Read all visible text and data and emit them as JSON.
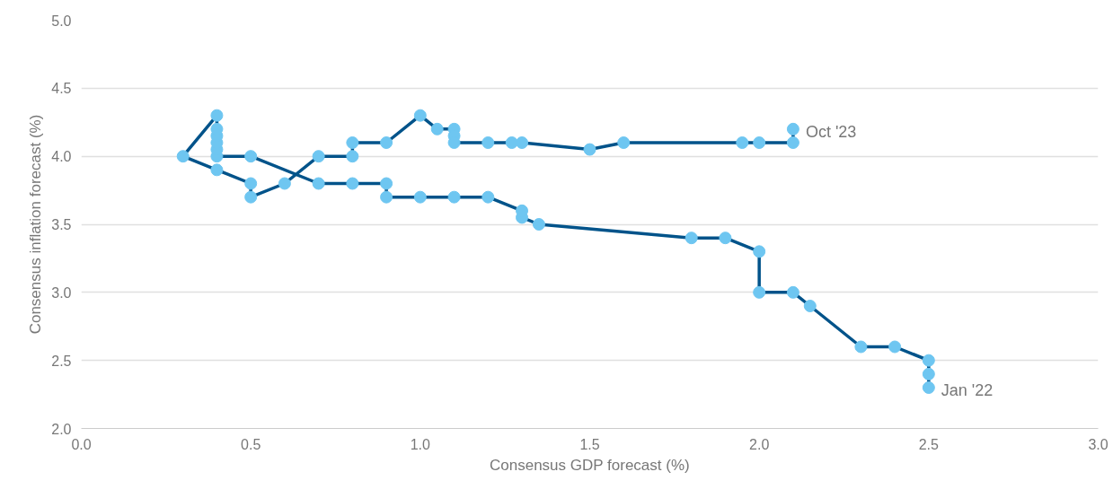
{
  "chart_data": {
    "type": "line",
    "xlabel": "Consensus GDP forecast (%)",
    "ylabel": "Consensus inflation forecast (%)",
    "xlim": [
      0,
      3
    ],
    "xticks": [
      {
        "value": 0,
        "label": "0.0"
      },
      0.5,
      {
        "value": 1,
        "label": "1.0"
      },
      1.5,
      {
        "value": 2,
        "label": "2.0"
      },
      2.5,
      {
        "value": 3,
        "label": "3.0"
      }
    ],
    "ylim": [
      2,
      5
    ],
    "yticks": [
      {
        "value": 2,
        "label": "2.0"
      },
      2.5,
      {
        "value": 3,
        "label": "3.0"
      },
      3.5,
      {
        "value": 4,
        "label": "4.0"
      },
      4.5,
      {
        "value": 5,
        "label": "5.0"
      }
    ],
    "grid": "y",
    "marker": "circle",
    "line_style": "solid",
    "series": [
      {
        "color": "#00538a",
        "colors": [
          "#6ec6f1",
          "#6ec6f1",
          "#6ec6f1",
          "#6ec6f1",
          "#6ec6f1",
          "#6ec6f1",
          "#6ec6f1",
          "#6ec6f1",
          "#6ec6f1",
          "#6ec6f1",
          "#6ec6f1",
          "#6ec6f1",
          "#6ec6f1",
          "#6ec6f1",
          "#6ec6f1",
          "#6ec6f1",
          "#6ec6f1",
          "#6ec6f1",
          "#6ec6f1",
          "#6ec6f1",
          "#6ec6f1",
          "#6ec6f1",
          "#6ec6f1",
          "#6ec6f1",
          "#6ec6f1",
          "#6ec6f1",
          "#6ec6f1",
          "#6ec6f1",
          "#6ec6f1",
          "#6ec6f1",
          "#6ec6f1",
          "#6ec6f1",
          "#6ec6f1",
          "#6ec6f1",
          "#6ec6f1",
          "#6ec6f1",
          "#6ec6f1",
          "#6ec6f1",
          "#6ec6f1",
          "#6ec6f1",
          "#6ec6f1",
          "#6ec6f1",
          "#6ec6f1",
          "#6ec6f1",
          "#6ec6f1",
          "#6ec6f1",
          "#6ec6f1",
          "#6ec6f1",
          "#6ec6f1",
          "#6ec6f1",
          "#6ec6f1"
        ],
        "x": [
          2.5,
          2.5,
          2.5,
          2.4,
          2.3,
          2.15,
          2.1,
          2.0,
          2.0,
          1.9,
          1.8,
          1.35,
          1.3,
          1.3,
          1.2,
          1.1,
          1.0,
          0.9,
          0.9,
          0.8,
          0.7,
          0.5,
          0.4,
          0.4,
          0.4,
          0.4,
          0.4,
          0.4,
          0.3,
          0.4,
          0.5,
          0.5,
          0.6,
          0.7,
          0.8,
          0.8,
          0.9,
          1.0,
          1.05,
          1.1,
          1.1,
          1.1,
          1.2,
          1.27,
          1.3,
          1.5,
          1.6,
          1.95,
          2.0,
          2.1,
          2.1
        ],
        "values": [
          2.3,
          2.4,
          2.5,
          2.6,
          2.6,
          2.9,
          3.0,
          3.0,
          3.3,
          3.4,
          3.4,
          3.5,
          3.55,
          3.6,
          3.7,
          3.7,
          3.7,
          3.7,
          3.8,
          3.8,
          3.8,
          4.0,
          4.0,
          4.05,
          4.1,
          4.15,
          4.2,
          4.3,
          4.0,
          3.9,
          3.8,
          3.7,
          3.8,
          4.0,
          4.0,
          4.1,
          4.1,
          4.3,
          4.2,
          4.2,
          4.15,
          4.1,
          4.1,
          4.1,
          4.1,
          4.05,
          4.1,
          4.1,
          4.1,
          4.1,
          4.2
        ]
      }
    ],
    "annotations": [
      {
        "text": "Jan '22",
        "x": 2.5,
        "y": 2.3
      },
      {
        "text": "Oct '23",
        "x": 2.1,
        "y": 4.2
      }
    ]
  }
}
